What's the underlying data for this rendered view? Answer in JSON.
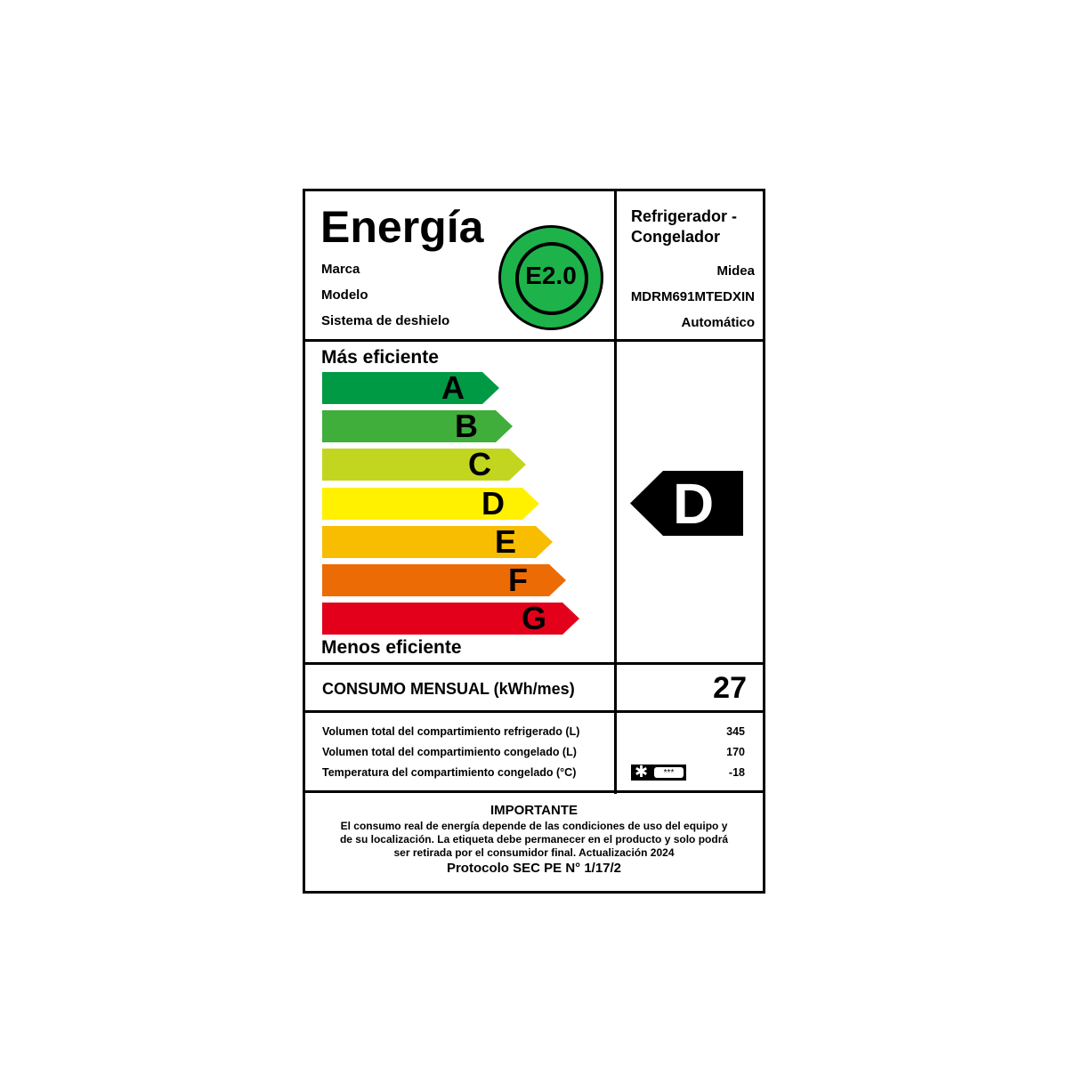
{
  "header": {
    "title": "Energía",
    "fields": [
      "Marca",
      "Modelo",
      "Sistema de deshielo"
    ],
    "badge": "E2.0",
    "badge_color": "#1db34a"
  },
  "product": {
    "type_line1": "Refrigerador -",
    "type_line2": "Congelador",
    "brand": "Midea",
    "model": "MDRM691MTEDXIN",
    "defrost": "Automático"
  },
  "scale": {
    "top_label": "Más eficiente",
    "bottom_label": "Menos eficiente",
    "classes": [
      {
        "letter": "A",
        "color": "#009a44"
      },
      {
        "letter": "B",
        "color": "#40ae3a"
      },
      {
        "letter": "C",
        "color": "#c3d61f"
      },
      {
        "letter": "D",
        "color": "#fff100"
      },
      {
        "letter": "E",
        "color": "#f8bc00"
      },
      {
        "letter": "F",
        "color": "#ec6b05"
      },
      {
        "letter": "G",
        "color": "#e3001b"
      }
    ]
  },
  "rating": {
    "class": "D"
  },
  "consumption": {
    "label": "CONSUMO MENSUAL (kWh/mes)",
    "value": "27"
  },
  "specs": [
    {
      "label": "Volumen total del compartimiento refrigerado (L)",
      "value": "345"
    },
    {
      "label": "Volumen total del compartimiento congelado (L)",
      "value": "170"
    },
    {
      "label": "Temperatura del compartimiento congelado (°C)",
      "value": "-18",
      "icon": "freezer-star-icon",
      "stars": "***"
    }
  ],
  "notice": {
    "title": "IMPORTANTE",
    "line1": "El consumo real de energía depende de las condiciones de uso del equipo y",
    "line2": "de su localización. La etiqueta debe permanecer en el producto y solo podrá",
    "line3": "ser retirada por el consumidor final. Actualización 2024",
    "protocol": "Protocolo SEC PE N° 1/17/2"
  }
}
